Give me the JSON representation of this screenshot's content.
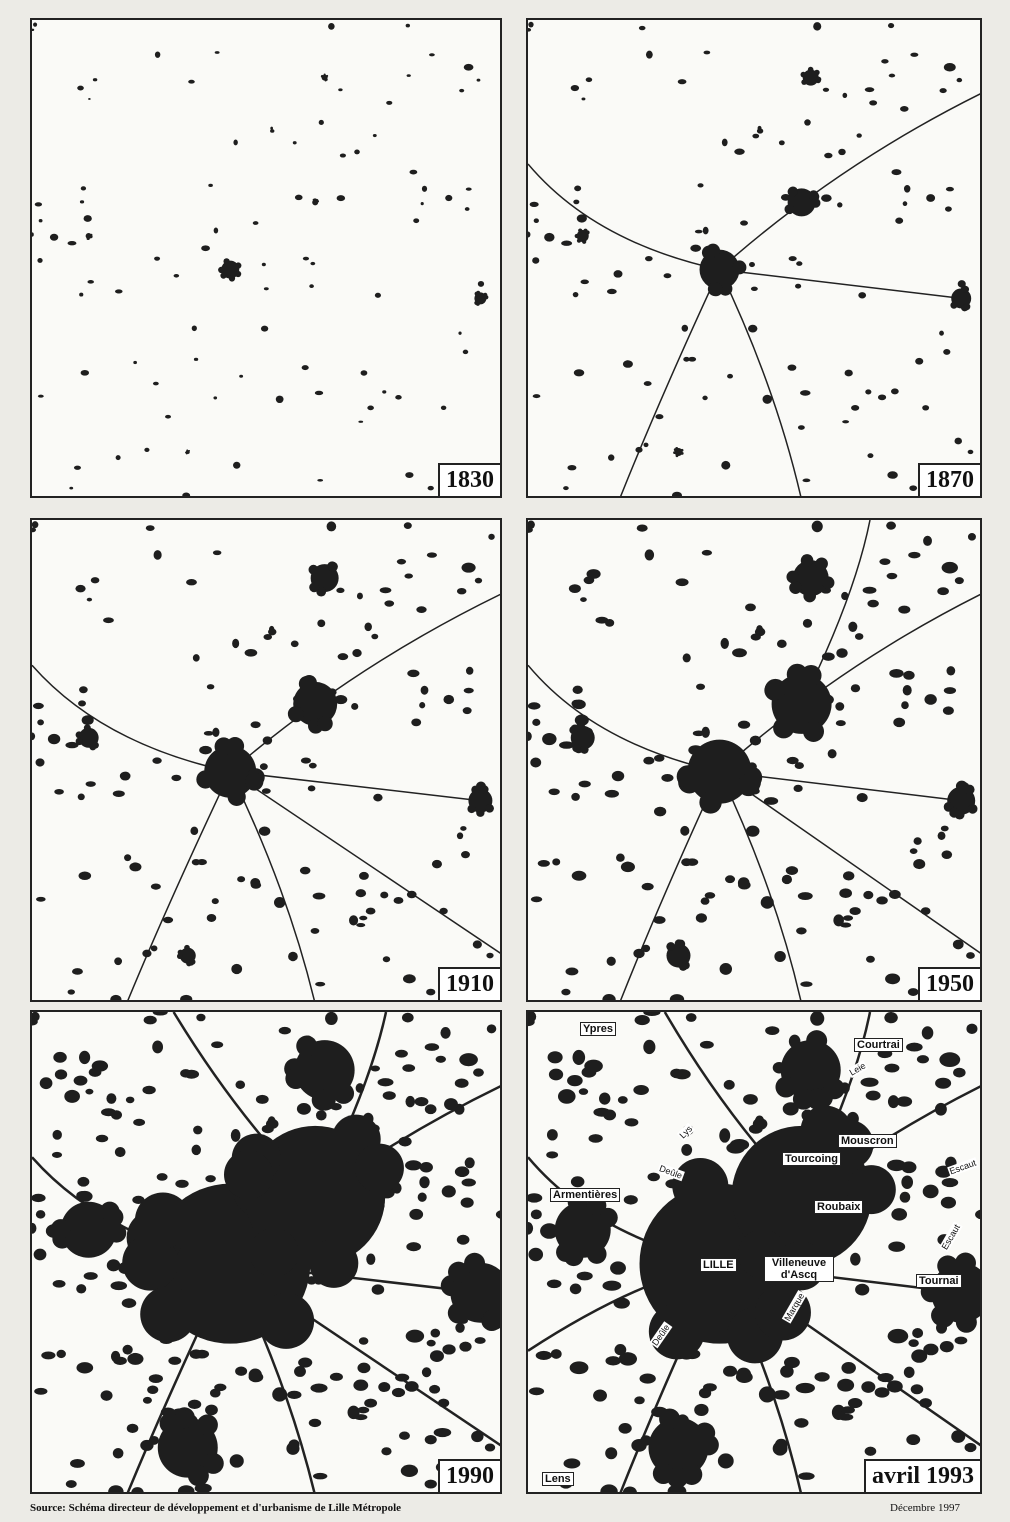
{
  "maps": [
    {
      "label": "1830"
    },
    {
      "label": "1870"
    },
    {
      "label": "1910"
    },
    {
      "label": "1950"
    },
    {
      "label": "1990"
    },
    {
      "label": "avril 1993"
    }
  ],
  "place_labels": [
    "Ypres",
    "Courtrai",
    "Leie",
    "Lys",
    "Mouscron",
    "Tourcoing",
    "Escaut",
    "Deûle",
    "Armentières",
    "Roubaix",
    "LILLE",
    "Villeneuve d'Ascq",
    "Escaut",
    "Tournai",
    "Marque",
    "Deûle",
    "Lens"
  ],
  "footer": {
    "source": "Source: Schéma directeur de développement et d'urbanisme de Lille Métropole",
    "date": "Décembre 1997"
  }
}
